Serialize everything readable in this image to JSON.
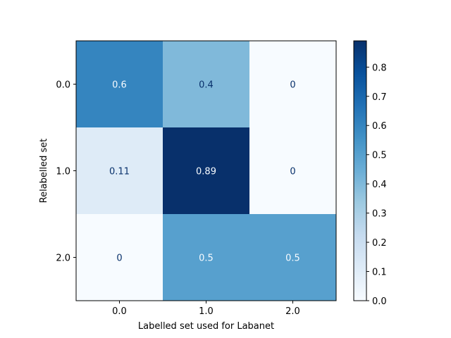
{
  "chart_data": {
    "type": "heatmap",
    "title": "",
    "xlabel": "Labelled set used for Labanet",
    "ylabel": "Relabelled set",
    "x_categories": [
      "0.0",
      "1.0",
      "2.0"
    ],
    "y_categories": [
      "0.0",
      "1.0",
      "2.0"
    ],
    "values": [
      [
        0.6,
        0.4,
        0
      ],
      [
        0.11,
        0.89,
        0
      ],
      [
        0,
        0.5,
        0.5
      ]
    ],
    "cell_labels": [
      [
        "0.6",
        "0.4",
        "0"
      ],
      [
        "0.11",
        "0.89",
        "0"
      ],
      [
        "0",
        "0.5",
        "0.5"
      ]
    ],
    "colormap": "Blues",
    "vmin": 0,
    "vmax": 0.89,
    "colorbar_ticks": [
      "0.0",
      "0.1",
      "0.2",
      "0.3",
      "0.4",
      "0.5",
      "0.6",
      "0.7",
      "0.8"
    ],
    "colorbar_tick_values": [
      0,
      0.1,
      0.2,
      0.3,
      0.4,
      0.5,
      0.6,
      0.7,
      0.8
    ],
    "colorbar": "right",
    "grid": false
  }
}
